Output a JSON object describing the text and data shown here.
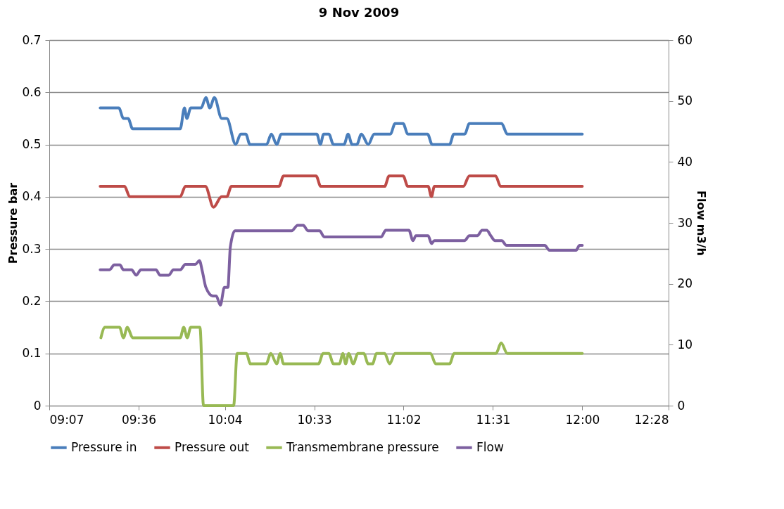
{
  "chart_data": {
    "type": "line",
    "title": "9 Nov 2009",
    "ylabel": "Pressure bar",
    "y2label": "Flow m3/h",
    "xlim": [
      9.1167,
      12.4667
    ],
    "xticks": [
      {
        "value": 9.1167,
        "label": "09:07"
      },
      {
        "value": 9.6,
        "label": "09:36"
      },
      {
        "value": 10.0667,
        "label": "10:04"
      },
      {
        "value": 10.55,
        "label": "10:33"
      },
      {
        "value": 11.0333,
        "label": "11:02"
      },
      {
        "value": 11.5167,
        "label": "11:31"
      },
      {
        "value": 12.0,
        "label": "12:00"
      },
      {
        "value": 12.4667,
        "label": "12:28"
      }
    ],
    "ylim": [
      0,
      0.7
    ],
    "yticks": [
      0,
      0.1,
      0.2,
      0.3,
      0.4,
      0.5,
      0.6,
      0.7
    ],
    "y2lim": [
      0,
      60
    ],
    "y2ticks": [
      0,
      10,
      20,
      30,
      40,
      50,
      60
    ],
    "grid": "y",
    "legend": "bottom",
    "line_style": "solid",
    "marker": "none",
    "series": [
      {
        "name": "Pressure in",
        "color": "#4a7ebb",
        "x": [
          9.392,
          9.493,
          9.518,
          9.543,
          9.568,
          9.825,
          9.848,
          9.861,
          9.882,
          9.938,
          9.964,
          9.985,
          10.01,
          10.049,
          10.077,
          10.125,
          10.152,
          10.18,
          10.202,
          10.292,
          10.318,
          10.347,
          10.372,
          10.564,
          10.583,
          10.601,
          10.629,
          10.654,
          10.711,
          10.733,
          10.755,
          10.78,
          10.805,
          10.842,
          10.874,
          10.962,
          10.987,
          11.031,
          11.056,
          11.163,
          11.188,
          11.282,
          11.305,
          11.364,
          11.389,
          11.564,
          11.594,
          12.0
        ],
        "values": [
          0.57,
          0.57,
          0.55,
          0.55,
          0.53,
          0.53,
          0.57,
          0.55,
          0.57,
          0.57,
          0.59,
          0.57,
          0.59,
          0.55,
          0.55,
          0.5,
          0.52,
          0.52,
          0.5,
          0.5,
          0.52,
          0.5,
          0.52,
          0.52,
          0.5,
          0.52,
          0.52,
          0.5,
          0.5,
          0.52,
          0.5,
          0.5,
          0.52,
          0.5,
          0.52,
          0.52,
          0.54,
          0.54,
          0.52,
          0.52,
          0.5,
          0.5,
          0.52,
          0.52,
          0.54,
          0.54,
          0.52,
          0.52
        ]
      },
      {
        "name": "Pressure out",
        "color": "#be4b48",
        "x": [
          9.392,
          9.524,
          9.552,
          9.825,
          9.853,
          9.961,
          10.005,
          10.049,
          10.077,
          10.102,
          10.359,
          10.384,
          10.56,
          10.585,
          10.931,
          10.955,
          11.031,
          11.056,
          11.166,
          11.184,
          11.2,
          11.357,
          11.389,
          11.531,
          11.558,
          12.0
        ],
        "values": [
          0.42,
          0.42,
          0.4,
          0.4,
          0.42,
          0.42,
          0.38,
          0.4,
          0.4,
          0.42,
          0.42,
          0.44,
          0.44,
          0.42,
          0.42,
          0.44,
          0.44,
          0.42,
          0.42,
          0.4,
          0.42,
          0.42,
          0.44,
          0.44,
          0.42,
          0.42
        ]
      },
      {
        "name": "Transmembrane pressure",
        "color": "#98b954",
        "x": [
          9.396,
          9.418,
          9.497,
          9.518,
          9.539,
          9.568,
          9.825,
          9.844,
          9.863,
          9.882,
          9.932,
          9.951,
          10.114,
          10.133,
          10.183,
          10.205,
          10.29,
          10.315,
          10.347,
          10.366,
          10.384,
          10.573,
          10.598,
          10.629,
          10.654,
          10.686,
          10.705,
          10.72,
          10.736,
          10.761,
          10.786,
          10.818,
          10.842,
          10.865,
          10.887,
          10.931,
          10.958,
          10.987,
          11.179,
          11.207,
          11.282,
          11.307,
          11.533,
          11.561,
          11.594,
          12.0
        ],
        "values": [
          0.13,
          0.15,
          0.15,
          0.13,
          0.15,
          0.13,
          0.13,
          0.15,
          0.13,
          0.15,
          0.15,
          0,
          0,
          0.1,
          0.1,
          0.08,
          0.08,
          0.1,
          0.08,
          0.1,
          0.08,
          0.08,
          0.1,
          0.1,
          0.08,
          0.08,
          0.1,
          0.08,
          0.1,
          0.08,
          0.1,
          0.1,
          0.08,
          0.08,
          0.1,
          0.1,
          0.08,
          0.1,
          0.1,
          0.08,
          0.08,
          0.1,
          0.1,
          0.12,
          0.1,
          0.1
        ]
      },
      {
        "name": "Flow",
        "color": "#7d60a0",
        "axis": "y2",
        "x": [
          9.392,
          9.443,
          9.468,
          9.499,
          9.518,
          9.562,
          9.587,
          9.612,
          9.694,
          9.716,
          9.763,
          9.788,
          9.825,
          9.853,
          9.907,
          9.929,
          9.945,
          9.964,
          10.001,
          10.02,
          10.042,
          10.064,
          10.083,
          10.096,
          10.121,
          10.428,
          10.46,
          10.491,
          10.516,
          10.579,
          10.604,
          10.912,
          10.937,
          11.062,
          11.084,
          11.1,
          11.166,
          11.185,
          11.2,
          11.364,
          11.389,
          11.433,
          11.458,
          11.483,
          11.505,
          11.527,
          11.564,
          11.59,
          11.797,
          11.822,
          11.966,
          11.985,
          12.0
        ],
        "values": [
          22.3,
          22.3,
          23.1,
          23.1,
          22.3,
          22.3,
          21.4,
          22.3,
          22.3,
          21.4,
          21.4,
          22.3,
          22.3,
          23.2,
          23.2,
          23.8,
          22.0,
          19.4,
          18.0,
          18.0,
          16.5,
          19.4,
          19.4,
          26.0,
          28.7,
          28.7,
          29.6,
          29.6,
          28.7,
          28.7,
          27.7,
          27.7,
          28.8,
          28.8,
          27.1,
          27.9,
          27.9,
          26.6,
          27.1,
          27.1,
          27.9,
          27.9,
          28.8,
          28.8,
          27.9,
          27.1,
          27.1,
          26.3,
          26.3,
          25.5,
          25.5,
          26.3,
          26.3
        ]
      }
    ]
  }
}
